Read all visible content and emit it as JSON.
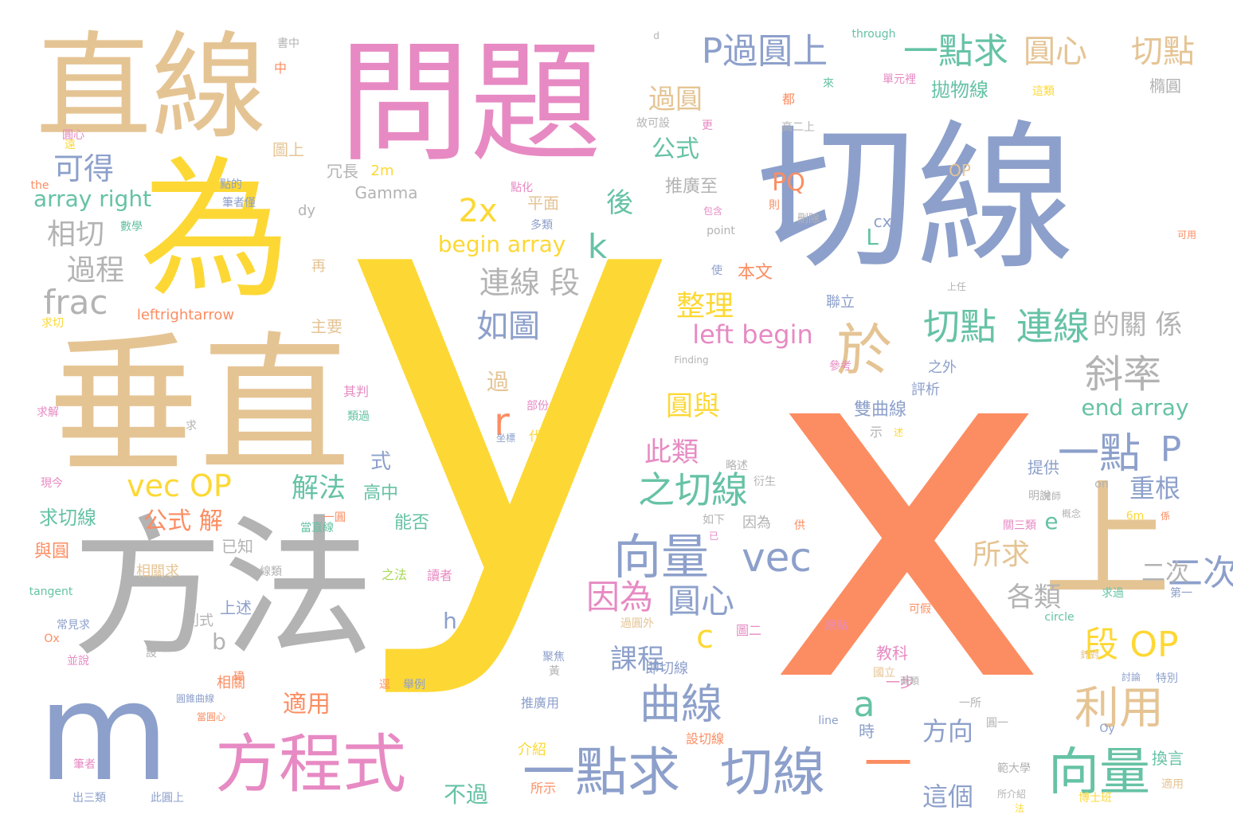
{
  "palette": {
    "gold": "#FDD835",
    "orange": "#FC8D62",
    "blue": "#8DA0CB",
    "tan": "#E5C494",
    "pink": "#E78AC3",
    "green": "#66C2A5",
    "gray": "#B3B3B3",
    "lime": "#A6D854"
  },
  "words": [
    {
      "text": "y",
      "color": "gold"
    },
    {
      "text": "x",
      "color": "orange"
    },
    {
      "text": "切線",
      "color": "blue"
    },
    {
      "text": "問題",
      "color": "pink"
    },
    {
      "text": "直線",
      "color": "tan"
    },
    {
      "text": "為",
      "color": "gold"
    },
    {
      "text": "垂直",
      "color": "tan"
    },
    {
      "text": "方法",
      "color": "gray"
    },
    {
      "text": "m",
      "color": "blue"
    },
    {
      "text": "上",
      "color": "tan"
    },
    {
      "text": "方程式",
      "color": "pink"
    },
    {
      "text": "一點求",
      "color": "blue"
    },
    {
      "text": "切線",
      "color": "blue"
    },
    {
      "text": "一",
      "color": "orange"
    },
    {
      "text": "向量",
      "color": "green"
    },
    {
      "text": "向量",
      "color": "blue"
    },
    {
      "text": "vec",
      "color": "blue"
    },
    {
      "text": "vec OP",
      "color": "gold"
    },
    {
      "text": "P過圓上",
      "color": "blue"
    },
    {
      "text": "一點求",
      "color": "green"
    },
    {
      "text": "圓心",
      "color": "tan"
    },
    {
      "text": "切點",
      "color": "tan"
    },
    {
      "text": "於",
      "color": "tan"
    },
    {
      "text": "斜率",
      "color": "gray"
    },
    {
      "text": "一點",
      "color": "blue"
    },
    {
      "text": "P",
      "color": "blue"
    },
    {
      "text": "利用",
      "color": "tan"
    },
    {
      "text": "之切線",
      "color": "green"
    },
    {
      "text": "二次",
      "color": "blue"
    },
    {
      "text": "曲線",
      "color": "blue"
    },
    {
      "text": "因為",
      "color": "pink"
    },
    {
      "text": "圓心",
      "color": "blue"
    },
    {
      "text": "段 OP",
      "color": "gold"
    },
    {
      "text": "切點",
      "color": "green"
    },
    {
      "text": "連線",
      "color": "green"
    },
    {
      "text": "的關 係",
      "color": "gray"
    },
    {
      "text": "2x",
      "color": "gold"
    },
    {
      "text": "frac",
      "color": "gray"
    },
    {
      "text": "可得",
      "color": "blue"
    },
    {
      "text": "相切",
      "color": "gray"
    },
    {
      "text": "過程",
      "color": "gray"
    },
    {
      "text": "連線 段",
      "color": "gray"
    },
    {
      "text": "如圖",
      "color": "blue"
    },
    {
      "text": "整理",
      "color": "gold"
    },
    {
      "text": "left begin",
      "color": "pink"
    },
    {
      "text": "begin array",
      "color": "gold"
    },
    {
      "text": "array right",
      "color": "green"
    },
    {
      "text": "公式 解",
      "color": "orange"
    },
    {
      "text": "解法",
      "color": "green"
    },
    {
      "text": "所求",
      "color": "tan"
    },
    {
      "text": "各類",
      "color": "gray"
    },
    {
      "text": "二次",
      "color": "gray"
    },
    {
      "text": "重根",
      "color": "blue"
    },
    {
      "text": "此類",
      "color": "pink"
    },
    {
      "text": "圓與",
      "color": "gold"
    },
    {
      "text": "課程",
      "color": "blue"
    },
    {
      "text": "過圓",
      "color": "tan"
    },
    {
      "text": "公式",
      "color": "green"
    },
    {
      "text": "後",
      "color": "green"
    },
    {
      "text": "k",
      "color": "green"
    },
    {
      "text": "r",
      "color": "orange"
    },
    {
      "text": "a",
      "color": "green"
    },
    {
      "text": "c",
      "color": "gold"
    },
    {
      "text": "e",
      "color": "green"
    },
    {
      "text": "h",
      "color": "blue"
    },
    {
      "text": "b",
      "color": "gray"
    },
    {
      "text": "L",
      "color": "green"
    },
    {
      "text": "PQ",
      "color": "orange"
    },
    {
      "text": "cx",
      "color": "blue"
    },
    {
      "text": "適用",
      "color": "orange"
    },
    {
      "text": "這個",
      "color": "blue"
    },
    {
      "text": "方向",
      "color": "blue"
    },
    {
      "text": "不過",
      "color": "green"
    },
    {
      "text": "end array",
      "color": "green"
    },
    {
      "text": "雙曲線",
      "color": "blue"
    },
    {
      "text": "拋物線",
      "color": "green"
    },
    {
      "text": "橢圓",
      "color": "gray"
    },
    {
      "text": "推廣至",
      "color": "gray"
    },
    {
      "text": "平面",
      "color": "tan"
    },
    {
      "text": "Gamma",
      "color": "gray"
    },
    {
      "text": "冗長",
      "color": "gray"
    },
    {
      "text": "2m",
      "color": "gold"
    },
    {
      "text": "dy",
      "color": "gray"
    },
    {
      "text": "圖上",
      "color": "tan"
    },
    {
      "text": "本文",
      "color": "orange"
    },
    {
      "text": "式",
      "color": "blue"
    },
    {
      "text": "過",
      "color": "tan"
    },
    {
      "text": "高中",
      "color": "green"
    },
    {
      "text": "能否",
      "color": "green"
    },
    {
      "text": "已知",
      "color": "gray"
    },
    {
      "text": "上述",
      "color": "blue"
    },
    {
      "text": "別式",
      "color": "gray"
    },
    {
      "text": "求切線",
      "color": "green"
    },
    {
      "text": "與圓",
      "color": "orange"
    },
    {
      "text": "相關求",
      "color": "tan"
    },
    {
      "text": "相關",
      "color": "orange"
    },
    {
      "text": "主要",
      "color": "tan"
    },
    {
      "text": "再",
      "color": "tan"
    },
    {
      "text": "leftrightarrow",
      "color": "orange"
    },
    {
      "text": "代入",
      "color": "gold"
    },
    {
      "text": "介紹",
      "color": "gold"
    },
    {
      "text": "所示",
      "color": "orange"
    },
    {
      "text": "推廣用",
      "color": "blue"
    },
    {
      "text": "教科",
      "color": "pink"
    },
    {
      "text": "一步",
      "color": "pink"
    },
    {
      "text": "時",
      "color": "blue"
    },
    {
      "text": "換言",
      "color": "green"
    },
    {
      "text": "提供",
      "color": "blue"
    },
    {
      "text": "即切線",
      "color": "blue"
    },
    {
      "text": "因為",
      "color": "gray"
    },
    {
      "text": "之外",
      "color": "blue"
    },
    {
      "text": "評析",
      "color": "blue"
    },
    {
      "text": "聯立",
      "color": "blue"
    },
    {
      "text": "OP",
      "color": "tan"
    },
    {
      "text": "圓心",
      "color": "pink"
    },
    {
      "text": "中",
      "color": "orange"
    },
    {
      "text": "書中",
      "color": "gray"
    },
    {
      "text": "數學",
      "color": "green"
    },
    {
      "text": "點的",
      "color": "blue"
    },
    {
      "text": "筆者僅",
      "color": "blue"
    },
    {
      "text": "the",
      "color": "orange"
    },
    {
      "text": "求切",
      "color": "gold"
    },
    {
      "text": "求解",
      "color": "pink"
    },
    {
      "text": "求",
      "color": "gray"
    },
    {
      "text": "現今",
      "color": "pink"
    },
    {
      "text": "tangent",
      "color": "green"
    },
    {
      "text": "常見求",
      "color": "blue"
    },
    {
      "text": "Ox",
      "color": "orange"
    },
    {
      "text": "並說",
      "color": "pink"
    },
    {
      "text": "筆者",
      "color": "pink"
    },
    {
      "text": "出三類",
      "color": "blue"
    },
    {
      "text": "此圓上",
      "color": "blue"
    },
    {
      "text": "through",
      "color": "green"
    },
    {
      "text": "d",
      "color": "gray"
    },
    {
      "text": "單元裡",
      "color": "pink"
    },
    {
      "text": "這類",
      "color": "gold"
    },
    {
      "text": "來",
      "color": "green"
    },
    {
      "text": "都",
      "color": "orange"
    },
    {
      "text": "高二上",
      "color": "gray"
    },
    {
      "text": "更",
      "color": "pink"
    },
    {
      "text": "故可設",
      "color": "gray"
    },
    {
      "text": "點化",
      "color": "pink"
    },
    {
      "text": "多類",
      "color": "blue"
    },
    {
      "text": "包含",
      "color": "pink"
    },
    {
      "text": "point",
      "color": "gray"
    },
    {
      "text": "則",
      "color": "orange"
    },
    {
      "text": "刪除",
      "color": "gray"
    },
    {
      "text": "可用",
      "color": "orange"
    },
    {
      "text": "使",
      "color": "blue"
    },
    {
      "text": "上任",
      "color": "gray"
    },
    {
      "text": "Finding",
      "color": "gray"
    },
    {
      "text": "參考",
      "color": "pink"
    },
    {
      "text": "其判",
      "color": "pink"
    },
    {
      "text": "類過",
      "color": "green"
    },
    {
      "text": "部份",
      "color": "pink"
    },
    {
      "text": "示",
      "color": "gray"
    },
    {
      "text": "述",
      "color": "gold"
    },
    {
      "text": "坐標",
      "color": "blue"
    },
    {
      "text": "略述",
      "color": "gray"
    },
    {
      "text": "衍生",
      "color": "gray"
    },
    {
      "text": "如下",
      "color": "gray"
    },
    {
      "text": "已",
      "color": "pink"
    },
    {
      "text": "供",
      "color": "orange"
    },
    {
      "text": "明說",
      "color": "gray"
    },
    {
      "text": "灣師",
      "color": "gray"
    },
    {
      "text": "on",
      "color": "gray"
    },
    {
      "text": "6m",
      "color": "gold"
    },
    {
      "text": "係",
      "color": "orange"
    },
    {
      "text": "關三類",
      "color": "pink"
    },
    {
      "text": "概念",
      "color": "gray"
    },
    {
      "text": "求過",
      "color": "green"
    },
    {
      "text": "第一",
      "color": "blue"
    },
    {
      "text": "可假",
      "color": "orange"
    },
    {
      "text": "原點",
      "color": "pink"
    },
    {
      "text": "圖二",
      "color": "pink"
    },
    {
      "text": "過圓外",
      "color": "tan"
    },
    {
      "text": "circle",
      "color": "green"
    },
    {
      "text": "針對",
      "color": "tan"
    },
    {
      "text": "討論",
      "color": "blue"
    },
    {
      "text": "特別",
      "color": "blue"
    },
    {
      "text": "聚焦",
      "color": "blue"
    },
    {
      "text": "黃",
      "color": "gray"
    },
    {
      "text": "國立",
      "color": "tan"
    },
    {
      "text": "兩類",
      "color": "gray"
    },
    {
      "text": "一所",
      "color": "gray"
    },
    {
      "text": "line",
      "color": "blue"
    },
    {
      "text": "圓一",
      "color": "gray"
    },
    {
      "text": "Oy",
      "color": "blue"
    },
    {
      "text": "範大學",
      "color": "gray"
    },
    {
      "text": "所介紹",
      "color": "gray"
    },
    {
      "text": "法",
      "color": "gold"
    },
    {
      "text": "博士班",
      "color": "gold"
    },
    {
      "text": "適用",
      "color": "tan"
    },
    {
      "text": "設切線",
      "color": "orange"
    },
    {
      "text": "讀者",
      "color": "pink"
    },
    {
      "text": "之法",
      "color": "lime"
    },
    {
      "text": "當直線",
      "color": "green"
    },
    {
      "text": "線類",
      "color": "gray"
    },
    {
      "text": "一圓",
      "color": "orange"
    },
    {
      "text": "逕",
      "color": "orange"
    },
    {
      "text": "舉例",
      "color": "blue"
    },
    {
      "text": "圓錐曲線",
      "color": "blue"
    },
    {
      "text": "當圓心",
      "color": "orange"
    },
    {
      "text": "瑋",
      "color": "orange"
    },
    {
      "text": "設",
      "color": "gray"
    },
    {
      "text": "遠",
      "color": "gold"
    }
  ]
}
